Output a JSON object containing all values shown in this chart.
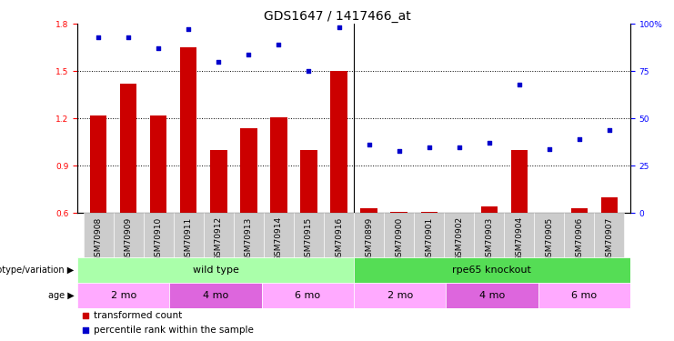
{
  "title": "GDS1647 / 1417466_at",
  "samples": [
    "GSM70908",
    "GSM70909",
    "GSM70910",
    "GSM70911",
    "GSM70912",
    "GSM70913",
    "GSM70914",
    "GSM70915",
    "GSM70916",
    "GSM70899",
    "GSM70900",
    "GSM70901",
    "GSM70902",
    "GSM70903",
    "GSM70904",
    "GSM70905",
    "GSM70906",
    "GSM70907"
  ],
  "transformed_count": [
    1.22,
    1.42,
    1.22,
    1.65,
    1.0,
    1.14,
    1.21,
    1.0,
    1.5,
    0.63,
    0.61,
    0.61,
    0.6,
    0.64,
    1.0,
    0.6,
    0.63,
    0.7
  ],
  "percentile_rank": [
    93,
    93,
    87,
    97,
    80,
    84,
    89,
    75,
    98,
    36,
    33,
    35,
    35,
    37,
    68,
    34,
    39,
    44
  ],
  "ylim_left": [
    0.6,
    1.8
  ],
  "ylim_right": [
    0,
    100
  ],
  "yticks_left": [
    0.6,
    0.9,
    1.2,
    1.5,
    1.8
  ],
  "yticks_right": [
    0,
    25,
    50,
    75,
    100
  ],
  "bar_color": "#CC0000",
  "scatter_color": "#0000CC",
  "bar_width": 0.55,
  "separator_idx": 9,
  "genotype_groups": [
    {
      "label": "wild type",
      "start": 0,
      "end": 9,
      "color": "#AAFFAA"
    },
    {
      "label": "rpe65 knockout",
      "start": 9,
      "end": 18,
      "color": "#55DD55"
    }
  ],
  "age_groups": [
    {
      "label": "2 mo",
      "start": 0,
      "end": 3,
      "color": "#FFAAFF"
    },
    {
      "label": "4 mo",
      "start": 3,
      "end": 6,
      "color": "#DD66DD"
    },
    {
      "label": "6 mo",
      "start": 6,
      "end": 9,
      "color": "#FFAAFF"
    },
    {
      "label": "2 mo",
      "start": 9,
      "end": 12,
      "color": "#FFAAFF"
    },
    {
      "label": "4 mo",
      "start": 12,
      "end": 15,
      "color": "#DD66DD"
    },
    {
      "label": "6 mo",
      "start": 15,
      "end": 18,
      "color": "#FFAAFF"
    }
  ],
  "legend_items": [
    {
      "label": "transformed count",
      "color": "#CC0000"
    },
    {
      "label": "percentile rank within the sample",
      "color": "#0000CC"
    }
  ],
  "tick_label_fontsize": 6.5,
  "title_fontsize": 10,
  "annotation_left": "genotype/variation",
  "annotation_age": "age",
  "xtick_bg_color": "#CCCCCC",
  "background_color": "#FFFFFF",
  "hgrid_vals": [
    0.9,
    1.2,
    1.5
  ],
  "hgrid_color": "black",
  "hgrid_style": "dotted",
  "separator_color": "#000000"
}
